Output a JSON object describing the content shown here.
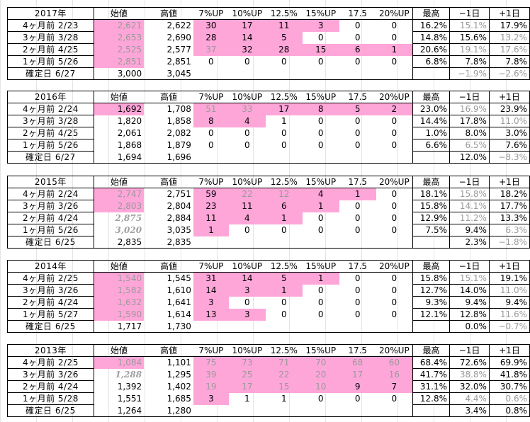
{
  "headers": [
    "始値",
    "高値",
    "7%UP",
    "10%UP",
    "12.5%",
    "15%UP",
    "17.5",
    "20%UP",
    "最高",
    "−1日",
    "+1日"
  ],
  "blocks": [
    {
      "year": "2017年",
      "rows": [
        {
          "label": "4ヶ月前  2/23",
          "cells": [
            "2,621",
            "2,622",
            "30",
            "17",
            "11",
            "3",
            "0",
            "0",
            "16.2%",
            "15.1%",
            "17.9%"
          ],
          "pink": [
            0,
            2,
            3,
            4,
            5
          ],
          "dim": [
            0,
            9
          ],
          "bold": [
            8,
            10
          ]
        },
        {
          "label": "3ヶ月前  3/28",
          "cells": [
            "2,653",
            "2,690",
            "28",
            "14",
            "5",
            "0",
            "0",
            "0",
            "14.8%",
            "15.6%",
            "13.2%"
          ],
          "pink": [
            0,
            2,
            3,
            4
          ],
          "dim": [
            0,
            10
          ],
          "bold": [
            8,
            9
          ]
        },
        {
          "label": "2ヶ月前  4/25",
          "cells": [
            "2,525",
            "2,577",
            "37",
            "32",
            "28",
            "15",
            "6",
            "1",
            "20.6%",
            "19.1%",
            "17.6%"
          ],
          "pink": [
            0,
            2,
            3,
            4,
            5,
            6,
            7
          ],
          "dim": [
            0,
            2,
            9,
            10
          ],
          "bold": [
            8
          ]
        },
        {
          "label": "1ヶ月前  5/26",
          "cells": [
            "2,851",
            "2,851",
            "0",
            "0",
            "0",
            "0",
            "0",
            "0",
            "6.8%",
            "7.8%",
            "7.8%"
          ],
          "pink": [
            0
          ],
          "dim": [
            0
          ],
          "bold": [
            8,
            9,
            10
          ]
        },
        {
          "label": "確定日  6/27",
          "cells": [
            "3,000",
            "3,045",
            "",
            "",
            "",
            "",
            "",
            "",
            "",
            "−1.9%",
            "−2.6%"
          ],
          "pink": [],
          "dim": [
            9,
            10
          ],
          "bold": []
        }
      ]
    },
    {
      "year": "2016年",
      "rows": [
        {
          "label": "4ヶ月前  2/24",
          "cells": [
            "1,692",
            "1,708",
            "51",
            "33",
            "17",
            "8",
            "5",
            "2",
            "23.0%",
            "16.9%",
            "23.9%"
          ],
          "pink": [
            0,
            2,
            3,
            4,
            5,
            6,
            7
          ],
          "dim": [
            2,
            3,
            9
          ],
          "bold": [
            8,
            10
          ]
        },
        {
          "label": "3ヶ月前  3/28",
          "cells": [
            "1,820",
            "1,858",
            "8",
            "4",
            "1",
            "0",
            "0",
            "0",
            "14.4%",
            "17.8%",
            "11.0%"
          ],
          "pink": [
            2,
            3
          ],
          "dim": [
            10
          ],
          "bold": [
            8,
            9
          ]
        },
        {
          "label": "2ヶ月前  4/25",
          "cells": [
            "2,061",
            "2,082",
            "0",
            "0",
            "0",
            "0",
            "0",
            "0",
            "1.0%",
            "8.0%",
            "3.0%"
          ],
          "pink": [],
          "dim": [],
          "bold": [
            8,
            9,
            10
          ]
        },
        {
          "label": "1ヶ月前  5/26",
          "cells": [
            "1,868",
            "1,879",
            "0",
            "0",
            "0",
            "0",
            "0",
            "0",
            "6.6%",
            "6.5%",
            "7.6%"
          ],
          "pink": [],
          "dim": [
            9
          ],
          "bold": [
            8,
            10
          ]
        },
        {
          "label": "確定日  6/27",
          "cells": [
            "1,694",
            "1,696",
            "",
            "",
            "",
            "",
            "",
            "",
            "",
            "12.0%",
            "−8.3%"
          ],
          "pink": [],
          "dim": [
            10
          ],
          "bold": [
            9
          ]
        }
      ]
    },
    {
      "year": "2015年",
      "rows": [
        {
          "label": "4ヶ月前  2/24",
          "cells": [
            "2,747",
            "2,751",
            "59",
            "22",
            "12",
            "4",
            "1",
            "0",
            "18.1%",
            "15.8%",
            "18.2%"
          ],
          "pink": [
            0,
            2,
            3,
            4,
            5,
            6
          ],
          "dim": [
            0,
            3,
            4,
            9
          ],
          "bold": [
            8,
            10
          ]
        },
        {
          "label": "3ヶ月前  3/26",
          "cells": [
            "2,803",
            "2,804",
            "23",
            "11",
            "6",
            "1",
            "0",
            "0",
            "15.8%",
            "14.1%",
            "17.7%"
          ],
          "pink": [
            0,
            2,
            3,
            4,
            5
          ],
          "dim": [
            0,
            9
          ],
          "bold": [
            8,
            10
          ]
        },
        {
          "label": "2ヶ月前  4/24",
          "cells": [
            "2,875",
            "2,884",
            "11",
            "4",
            "1",
            "0",
            "0",
            "0",
            "12.9%",
            "11.2%",
            "13.3%"
          ],
          "pink": [
            2,
            3,
            4
          ],
          "dim": [
            9
          ],
          "bold": [
            8,
            10
          ],
          "italic": [
            0
          ]
        },
        {
          "label": "1ヶ月前  5/26",
          "cells": [
            "3,020",
            "3,035",
            "1",
            "0",
            "0",
            "0",
            "0",
            "0",
            "7.5%",
            "9.4%",
            "6.3%"
          ],
          "pink": [
            2
          ],
          "dim": [
            10
          ],
          "bold": [
            8,
            9
          ],
          "italic": [
            0
          ]
        },
        {
          "label": "確定日  6/25",
          "cells": [
            "2,835",
            "2,835",
            "",
            "",
            "",
            "",
            "",
            "",
            "",
            "2.3%",
            "−1.8%"
          ],
          "pink": [],
          "dim": [
            10
          ],
          "bold": [
            9
          ]
        }
      ]
    },
    {
      "year": "2014年",
      "rows": [
        {
          "label": "4ヶ月前  2/25",
          "cells": [
            "1,540",
            "1,545",
            "31",
            "14",
            "5",
            "1",
            "0",
            "0",
            "15.8%",
            "15.1%",
            "19.1%"
          ],
          "pink": [
            0,
            2,
            3,
            4,
            5
          ],
          "dim": [
            0,
            9
          ],
          "bold": [
            8,
            10
          ]
        },
        {
          "label": "3ヶ月前  3/26",
          "cells": [
            "1,582",
            "1,610",
            "14",
            "3",
            "1",
            "0",
            "0",
            "0",
            "12.7%",
            "14.0%",
            "11.0%"
          ],
          "pink": [
            0,
            2,
            3,
            4
          ],
          "dim": [
            0,
            10
          ],
          "bold": [
            8,
            9
          ]
        },
        {
          "label": "2ヶ月前  4/24",
          "cells": [
            "1,632",
            "1,641",
            "3",
            "0",
            "0",
            "0",
            "0",
            "0",
            "9.3%",
            "9.4%",
            "9.4%"
          ],
          "pink": [
            0,
            2
          ],
          "dim": [
            0
          ],
          "bold": [
            8,
            9,
            10
          ]
        },
        {
          "label": "1ヶ月前  5/27",
          "cells": [
            "1,590",
            "1,614",
            "13",
            "3",
            "0",
            "0",
            "0",
            "0",
            "12.1%",
            "12.8%",
            "11.6%"
          ],
          "pink": [
            0,
            2,
            3
          ],
          "dim": [
            0,
            10
          ],
          "bold": [
            8,
            9
          ]
        },
        {
          "label": "確定日  6/25",
          "cells": [
            "1,717",
            "1,730",
            "",
            "",
            "",
            "",
            "",
            "",
            "",
            "0.0%",
            "−0.7%"
          ],
          "pink": [],
          "dim": [
            10
          ],
          "bold": []
        }
      ]
    },
    {
      "year": "2013年",
      "rows": [
        {
          "label": "4ヶ月前  2/25",
          "cells": [
            "1,084",
            "1,101",
            "75",
            "73",
            "71",
            "70",
            "68",
            "60",
            "68.4%",
            "72.6%",
            "69.9%"
          ],
          "pink": [
            0,
            2,
            3,
            4,
            5,
            6,
            7
          ],
          "dim": [
            0,
            2,
            3,
            4,
            5,
            6,
            7
          ],
          "bold": [
            8,
            9,
            10
          ]
        },
        {
          "label": "3ヶ月前  3/26",
          "cells": [
            "1,288",
            "1,295",
            "39",
            "25",
            "22",
            "20",
            "17",
            "16",
            "41.7%",
            "38.8%",
            "41.8%"
          ],
          "pink": [
            2,
            3,
            4,
            5,
            6,
            7
          ],
          "dim": [
            2,
            3,
            4,
            5,
            6,
            7,
            9
          ],
          "bold": [
            8,
            10
          ],
          "italic": [
            0
          ]
        },
        {
          "label": "2ヶ月前  4/24",
          "cells": [
            "1,392",
            "1,402",
            "19",
            "17",
            "15",
            "10",
            "9",
            "7",
            "31.1%",
            "32.0%",
            "30.7%"
          ],
          "pink": [
            2,
            3,
            4,
            5,
            6,
            7
          ],
          "dim": [
            2,
            3,
            4,
            5
          ],
          "bold": [
            8,
            9
          ]
        },
        {
          "label": "1ヶ月前  5/28",
          "cells": [
            "1,551",
            "1,685",
            "3",
            "1",
            "1",
            "0",
            "0",
            "0",
            "12.8%",
            "4.4%",
            "0.6%"
          ],
          "pink": [
            2
          ],
          "dim": [
            9,
            10
          ],
          "bold": [
            8
          ]
        },
        {
          "label": "確定日  6/25",
          "cells": [
            "1,264",
            "1,280",
            "",
            "",
            "",
            "",
            "",
            "",
            "",
            "3.4%",
            "0.8%"
          ],
          "pink": [],
          "dim": [],
          "bold": [
            9,
            10
          ]
        }
      ]
    }
  ]
}
